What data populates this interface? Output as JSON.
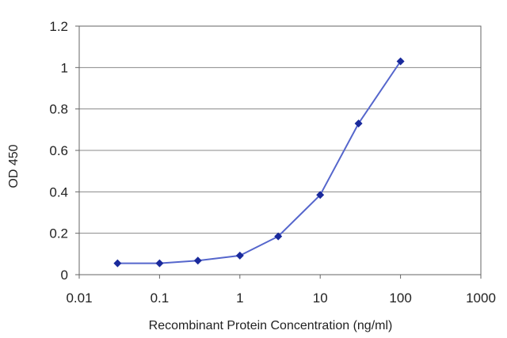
{
  "chart_data": {
    "type": "line",
    "xscale": "log",
    "x": [
      0.03,
      0.1,
      0.3,
      1,
      3,
      10,
      30,
      100
    ],
    "series": [
      {
        "values": [
          0.055,
          0.055,
          0.068,
          0.092,
          0.185,
          0.385,
          0.73,
          1.03
        ]
      }
    ],
    "xlabel": "Recombinant Protein Concentration (ng/ml)",
    "ylabel": "OD 450",
    "xlim": [
      0.01,
      1000
    ],
    "ylim": [
      0,
      1.2
    ],
    "xticks": [
      "0.01",
      "0.1",
      "1",
      "10",
      "100",
      "1000"
    ],
    "xtick_values": [
      0.01,
      0.1,
      1,
      10,
      100,
      1000
    ],
    "yticks": [
      "0",
      "0.2",
      "0.4",
      "0.6",
      "0.8",
      "1",
      "1.2"
    ],
    "ytick_values": [
      0,
      0.2,
      0.4,
      0.6,
      0.8,
      1,
      1.2
    ],
    "grid": "horizontal",
    "legend": "none",
    "colors": {
      "series": "#1a2a9c",
      "line": "#5566cc",
      "grid": "#888888",
      "frame": "#666666"
    }
  }
}
